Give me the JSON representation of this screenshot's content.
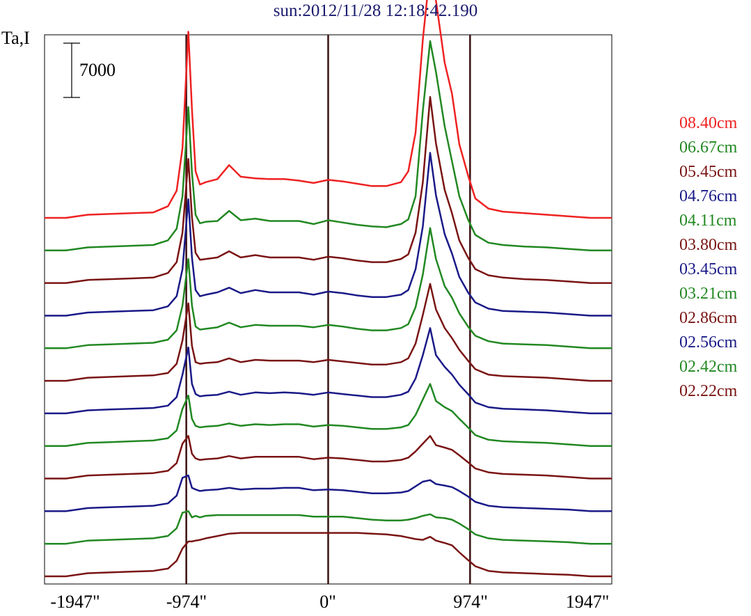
{
  "chart_data": {
    "type": "line",
    "title": "sun:2012/11/28 12:18:42.190",
    "ylabel": "Ta,I",
    "scale_bar": {
      "label": "7000",
      "value": 7000
    },
    "x_ticks": [
      "-1947\"",
      "-974\"",
      "0\"",
      "974\"",
      "1947\""
    ],
    "x_tick_values": [
      -1947,
      -974,
      0,
      974,
      1947
    ],
    "xlim": [
      -1947,
      1947
    ],
    "vertical_lines_at": [
      -974,
      0,
      974
    ],
    "title_color": "#1a1a6e",
    "series_note": "traces stacked top to bottom; values are profile height above each trace's baseline in Ta,I units",
    "x": [
      -1947,
      -1800,
      -1650,
      -1500,
      -1350,
      -1200,
      -1100,
      -1040,
      -1000,
      -960,
      -935,
      -910,
      -880,
      -840,
      -760,
      -680,
      -600,
      -500,
      -400,
      -300,
      -200,
      -100,
      0,
      100,
      200,
      300,
      400,
      500,
      550,
      600,
      650,
      700,
      740,
      800,
      850,
      900,
      960,
      1010,
      1100,
      1200,
      1350,
      1500,
      1650,
      1800,
      1947
    ],
    "series": [
      {
        "name": "08.40cm",
        "color": "#ee2222",
        "values": [
          0,
          0,
          400,
          500,
          600,
          700,
          1500,
          3500,
          9000,
          24000,
          14000,
          6000,
          4300,
          4600,
          5000,
          6800,
          5300,
          5100,
          5000,
          5000,
          4800,
          4500,
          4900,
          4700,
          4400,
          4100,
          4100,
          4600,
          6000,
          11000,
          23000,
          32000,
          28000,
          20000,
          16000,
          9500,
          5500,
          2500,
          1200,
          800,
          600,
          400,
          200,
          0,
          0
        ]
      },
      {
        "name": "06.67cm",
        "color": "#228822",
        "values": [
          0,
          0,
          400,
          500,
          600,
          700,
          1300,
          2800,
          7000,
          18500,
          10000,
          4600,
          3500,
          3700,
          3800,
          5100,
          3900,
          4100,
          3800,
          3800,
          3800,
          3400,
          3900,
          3600,
          3300,
          3100,
          3000,
          3400,
          4000,
          7000,
          18000,
          27000,
          23000,
          16000,
          11500,
          7000,
          4000,
          2000,
          1000,
          700,
          500,
          400,
          200,
          0,
          0
        ]
      },
      {
        "name": "05.45cm",
        "color": "#7a1414",
        "values": [
          0,
          0,
          400,
          500,
          600,
          700,
          1300,
          2700,
          6500,
          16000,
          8500,
          3900,
          3000,
          3100,
          3300,
          4100,
          3300,
          3600,
          3300,
          3300,
          3300,
          3000,
          3400,
          3200,
          2900,
          2700,
          2700,
          3100,
          3700,
          6500,
          13000,
          24000,
          18000,
          12000,
          9000,
          5500,
          3300,
          1800,
          1000,
          700,
          500,
          400,
          200,
          0,
          0
        ]
      },
      {
        "name": "04.76cm",
        "color": "#1a1a88",
        "values": [
          0,
          0,
          400,
          500,
          600,
          700,
          1200,
          2500,
          6000,
          15000,
          7500,
          3300,
          2500,
          2700,
          3000,
          3600,
          2900,
          3300,
          3000,
          3000,
          3000,
          2700,
          3100,
          2900,
          2600,
          2400,
          2400,
          2700,
          3300,
          6000,
          11500,
          21000,
          15500,
          10500,
          8000,
          5000,
          3000,
          1700,
          900,
          600,
          500,
          400,
          200,
          0,
          0
        ]
      },
      {
        "name": "04.11cm",
        "color": "#228822",
        "values": [
          0,
          0,
          400,
          500,
          600,
          700,
          1100,
          2300,
          5500,
          11500,
          5500,
          2800,
          2400,
          2500,
          2700,
          3300,
          2700,
          3000,
          2900,
          2900,
          2900,
          2700,
          3000,
          2800,
          2500,
          2300,
          2300,
          2600,
          3100,
          5300,
          9500,
          15500,
          11500,
          8000,
          6500,
          4500,
          2800,
          1600,
          900,
          600,
          500,
          400,
          200,
          0,
          0
        ]
      },
      {
        "name": "03.80cm",
        "color": "#7a1414",
        "values": [
          0,
          0,
          400,
          500,
          600,
          700,
          1000,
          2200,
          5200,
          10000,
          4500,
          2400,
          2200,
          2300,
          2400,
          2900,
          2400,
          2700,
          2600,
          2600,
          2600,
          2400,
          2700,
          2500,
          2300,
          2100,
          2100,
          2400,
          2900,
          4800,
          8500,
          12500,
          9200,
          6800,
          5500,
          4000,
          2600,
          1500,
          800,
          600,
          500,
          400,
          200,
          0,
          0
        ]
      },
      {
        "name": "03.45cm",
        "color": "#1a1a88",
        "values": [
          0,
          0,
          400,
          500,
          600,
          700,
          1000,
          2100,
          5000,
          8500,
          3800,
          2500,
          2200,
          2300,
          2400,
          2800,
          2400,
          2700,
          2600,
          2700,
          2600,
          2400,
          2700,
          2500,
          2300,
          2100,
          2100,
          2400,
          2800,
          4500,
          7500,
          11000,
          7500,
          6000,
          5000,
          3700,
          2500,
          1400,
          800,
          600,
          500,
          400,
          200,
          0,
          0
        ]
      },
      {
        "name": "03.21cm",
        "color": "#228822",
        "values": [
          0,
          0,
          400,
          500,
          600,
          700,
          1000,
          2000,
          4800,
          6500,
          3500,
          2600,
          2400,
          2500,
          2600,
          2900,
          2600,
          2800,
          2700,
          2800,
          2800,
          2500,
          2700,
          2600,
          2400,
          2200,
          2200,
          2400,
          2700,
          4000,
          6000,
          8000,
          5800,
          5000,
          4500,
          3500,
          2400,
          1400,
          800,
          600,
          500,
          400,
          200,
          0,
          0
        ]
      },
      {
        "name": "02.86cm",
        "color": "#7a1414",
        "values": [
          0,
          0,
          400,
          500,
          600,
          700,
          1000,
          2000,
          4500,
          5500,
          3200,
          2600,
          2400,
          2500,
          2600,
          2900,
          2600,
          2800,
          2800,
          2800,
          2800,
          2500,
          2700,
          2600,
          2400,
          2200,
          2200,
          2400,
          2700,
          3500,
          4500,
          5500,
          4300,
          4000,
          3700,
          3000,
          2100,
          1300,
          800,
          600,
          500,
          400,
          200,
          0,
          0
        ]
      },
      {
        "name": "02.56cm",
        "color": "#1a1a88",
        "values": [
          0,
          0,
          400,
          500,
          600,
          700,
          1000,
          2000,
          4300,
          4600,
          3000,
          2800,
          2600,
          2700,
          2800,
          3000,
          2800,
          2900,
          2900,
          3000,
          3000,
          2700,
          2800,
          2700,
          2500,
          2300,
          2300,
          2400,
          2600,
          3200,
          3800,
          4000,
          3500,
          3300,
          3100,
          2600,
          1900,
          1200,
          700,
          500,
          400,
          300,
          200,
          0,
          0
        ]
      },
      {
        "name": "02.42cm",
        "color": "#228822",
        "values": [
          0,
          0,
          400,
          500,
          600,
          700,
          1000,
          2000,
          4000,
          4200,
          3400,
          3600,
          3400,
          3600,
          3700,
          3700,
          3700,
          3700,
          3700,
          3700,
          3700,
          3500,
          3500,
          3500,
          3300,
          3100,
          3000,
          3000,
          3100,
          3300,
          3600,
          3800,
          3400,
          3300,
          3100,
          2600,
          1900,
          1200,
          700,
          500,
          400,
          300,
          200,
          0,
          0
        ]
      },
      {
        "name": "02.22cm",
        "color": "#7a1414",
        "values": [
          0,
          0,
          400,
          500,
          600,
          700,
          1000,
          2000,
          3600,
          4500,
          4500,
          4600,
          4700,
          4900,
          5200,
          5500,
          5600,
          5600,
          5600,
          5600,
          5600,
          5600,
          5600,
          5600,
          5600,
          5500,
          5400,
          5200,
          5000,
          4800,
          4700,
          5100,
          4600,
          4300,
          4000,
          3100,
          2100,
          1300,
          700,
          500,
          400,
          300,
          200,
          0,
          0
        ]
      }
    ]
  }
}
